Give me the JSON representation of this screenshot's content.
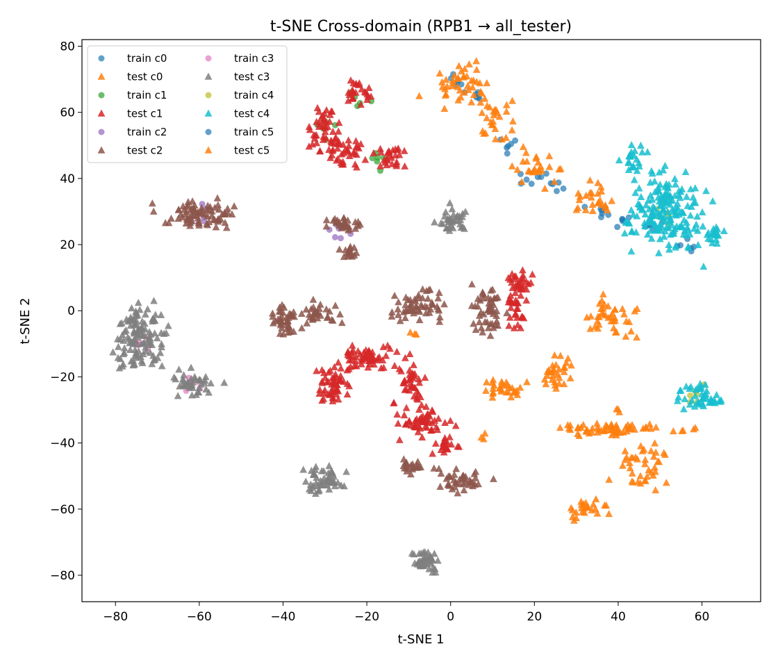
{
  "chart_data": {
    "type": "scatter",
    "title": "t-SNE Cross-domain (RPB1 → all_tester)",
    "xlabel": "t-SNE 1",
    "ylabel": "t-SNE 2",
    "xlim": [
      -88,
      74
    ],
    "ylim": [
      -88,
      82
    ],
    "xticks": [
      -80,
      -60,
      -40,
      -20,
      0,
      20,
      40,
      60
    ],
    "yticks": [
      -80,
      -60,
      -40,
      -20,
      0,
      20,
      40,
      60,
      80
    ],
    "grid": false,
    "legend": {
      "position": "top-left",
      "columns": 2
    },
    "series": [
      {
        "name": "train c0",
        "marker": "circle",
        "color": "#1f77b4",
        "clusters": [
          [
            5,
            65
          ],
          [
            14,
            50
          ],
          [
            25,
            38
          ],
          [
            36,
            30
          ],
          [
            48,
            25
          ],
          [
            56,
            20
          ]
        ]
      },
      {
        "name": "test c0",
        "marker": "triangle",
        "color": "#ff7f0e",
        "clusters": [
          [
            3,
            68,
            8,
            6,
            45
          ],
          [
            12,
            56,
            5,
            6,
            25
          ],
          [
            21,
            43,
            5,
            5,
            25
          ],
          [
            34,
            34,
            5,
            5,
            25
          ],
          [
            38,
            -2,
            6,
            6,
            40
          ],
          [
            25,
            -19,
            4,
            5,
            30
          ],
          [
            12,
            -24,
            5,
            3,
            30
          ],
          [
            38,
            -36,
            12,
            2,
            60
          ],
          [
            46,
            -47,
            7,
            7,
            40
          ],
          [
            32,
            -60,
            5,
            3,
            25
          ]
        ]
      },
      {
        "name": "train c1",
        "marker": "circle",
        "color": "#2ca02c",
        "clusters": [
          [
            -31,
            55
          ],
          [
            -22,
            65
          ],
          [
            -16,
            45
          ]
        ]
      },
      {
        "name": "test c1",
        "marker": "triangle",
        "color": "#d62728",
        "clusters": [
          [
            -30,
            55,
            3,
            8,
            45
          ],
          [
            -22,
            66,
            3,
            4,
            25
          ],
          [
            -24,
            48,
            5,
            6,
            35
          ],
          [
            -14,
            46,
            4,
            4,
            25
          ],
          [
            -28,
            -23,
            4,
            6,
            50
          ],
          [
            -20,
            -14,
            7,
            4,
            60
          ],
          [
            -10,
            -22,
            4,
            6,
            40
          ],
          [
            -6,
            -34,
            7,
            4,
            50
          ],
          [
            -1,
            -41,
            3,
            3,
            20
          ],
          [
            16,
            3,
            2,
            8,
            35
          ],
          [
            17,
            9,
            3,
            3,
            20
          ]
        ]
      },
      {
        "name": "train c2",
        "marker": "circle",
        "color": "#9467bd",
        "clusters": [
          [
            -60,
            29
          ],
          [
            -26,
            24
          ]
        ]
      },
      {
        "name": "test c2",
        "marker": "triangle",
        "color": "#8c564b",
        "clusters": [
          [
            -60,
            29,
            9,
            4,
            80
          ],
          [
            -26,
            26,
            4,
            2,
            30
          ],
          [
            -24,
            18,
            2,
            2,
            15
          ],
          [
            -40,
            -3,
            4,
            5,
            40
          ],
          [
            -31,
            -1,
            5,
            3,
            30
          ],
          [
            -8,
            2,
            7,
            5,
            55
          ],
          [
            9,
            0,
            4,
            8,
            50
          ],
          [
            -10,
            -47,
            3,
            2,
            20
          ],
          [
            2,
            -51,
            6,
            4,
            40
          ]
        ]
      },
      {
        "name": "train c3",
        "marker": "circle",
        "color": "#e377c2",
        "clusters": [
          [
            -74,
            -10
          ],
          [
            -63,
            -23
          ]
        ]
      },
      {
        "name": "test c3",
        "marker": "triangle",
        "color": "#7f7f7f",
        "clusters": [
          [
            -74,
            -8,
            6,
            10,
            120
          ],
          [
            -62,
            -22,
            6,
            4,
            40
          ],
          [
            -30,
            -51,
            5,
            4,
            50
          ],
          [
            0,
            28,
            4,
            4,
            35
          ],
          [
            -6,
            -76,
            3,
            4,
            45
          ]
        ]
      },
      {
        "name": "train c4",
        "marker": "circle",
        "color": "#bcbd22",
        "clusters": [
          [
            50,
            30
          ],
          [
            58,
            -25
          ]
        ]
      },
      {
        "name": "test c4",
        "marker": "triangle",
        "color": "#17becf",
        "clusters": [
          [
            51,
            30,
            8,
            11,
            180
          ],
          [
            60,
            -26,
            5,
            4,
            45
          ],
          [
            43,
            46,
            3,
            3,
            20
          ],
          [
            63,
            23,
            3,
            4,
            20
          ]
        ]
      },
      {
        "name": "train c5",
        "marker": "circle",
        "color": "#1f77b4",
        "clusters": [
          [
            2,
            70
          ],
          [
            20,
            40
          ],
          [
            40,
            28
          ]
        ]
      },
      {
        "name": "test c5",
        "marker": "triangle",
        "color": "#ff7f0e",
        "clusters": [
          [
            40,
            -30,
            1,
            1,
            3
          ],
          [
            8,
            -38,
            1,
            1,
            3
          ],
          [
            -9,
            -7,
            1,
            1,
            3
          ],
          [
            57,
            -36,
            2,
            1,
            4
          ]
        ]
      }
    ]
  }
}
